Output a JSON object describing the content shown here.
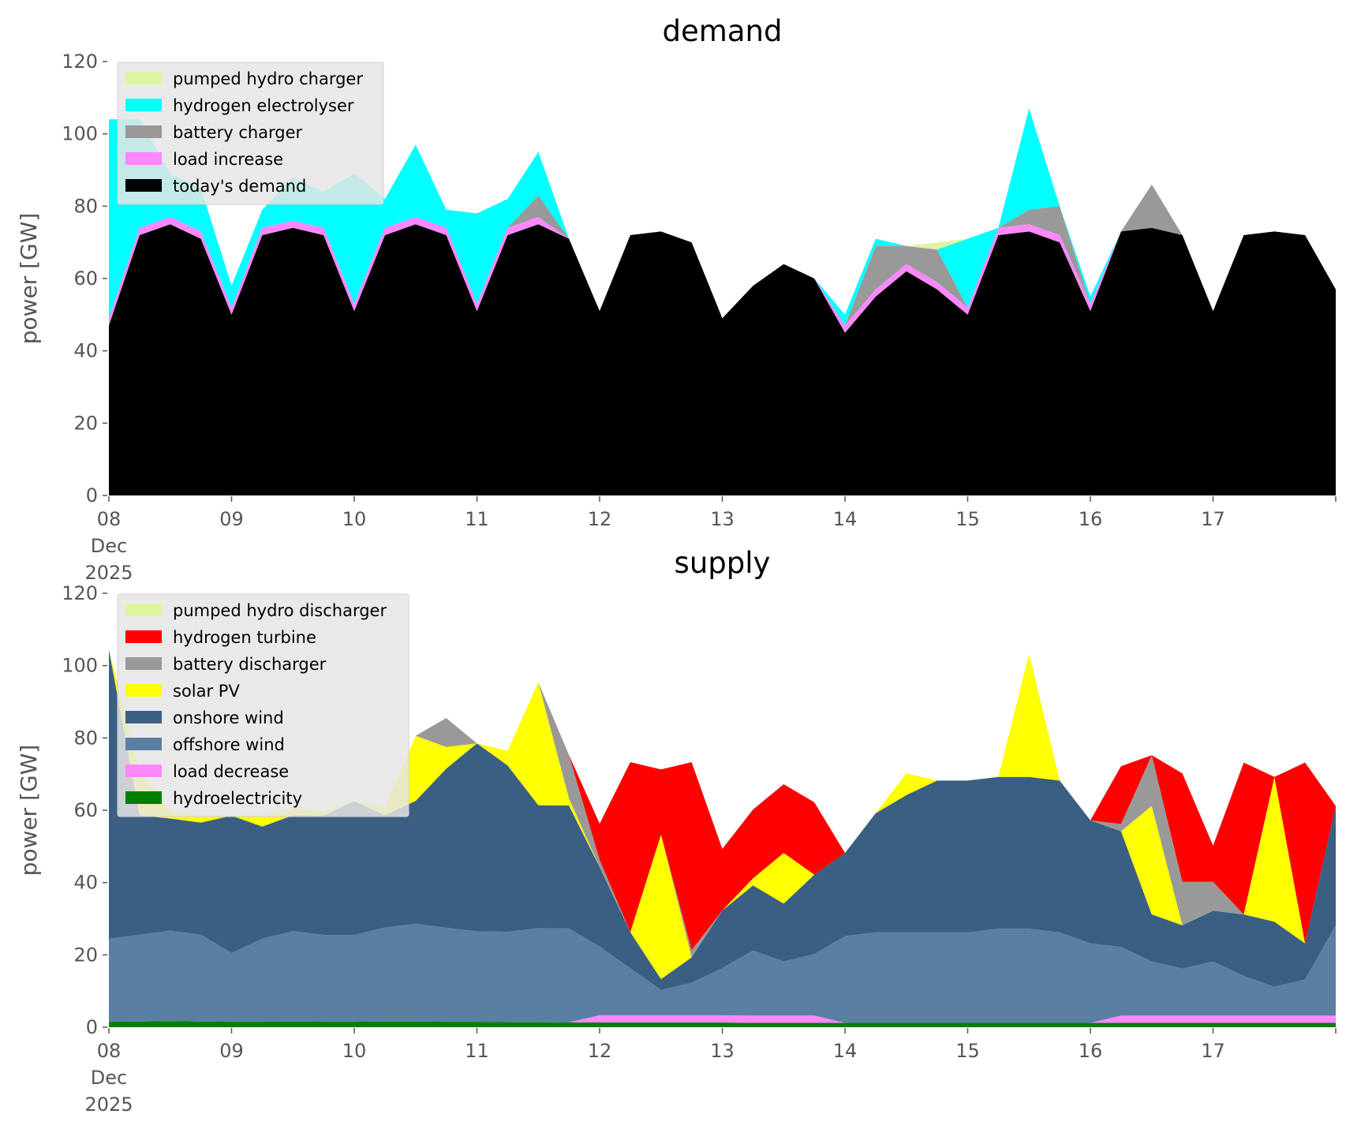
{
  "chart_data": [
    {
      "type": "area",
      "stacked": true,
      "title": "demand",
      "xlabel": "",
      "ylabel": "power [GW]",
      "ylim": [
        0,
        120
      ],
      "y_ticks": [
        "0",
        "20",
        "40",
        "60",
        "80",
        "100",
        "120"
      ],
      "x_ticks": [
        "08",
        "09",
        "10",
        "11",
        "12",
        "13",
        "14",
        "15",
        "16",
        "17"
      ],
      "x_tick_sublabel": [
        "Dec",
        "2025"
      ],
      "x_days": [
        0,
        1,
        2,
        3,
        4,
        5,
        6,
        7,
        8,
        9
      ],
      "xlim": [
        0,
        10
      ],
      "legend_position": "top-left",
      "x": [
        0,
        0.25,
        0.5,
        0.75,
        1,
        1.25,
        1.5,
        1.75,
        2,
        2.25,
        2.5,
        2.75,
        3,
        3.25,
        3.5,
        3.75,
        4,
        4.25,
        4.5,
        4.75,
        5,
        5.25,
        5.5,
        5.75,
        6,
        6.25,
        6.5,
        6.75,
        7,
        7.25,
        7.5,
        7.75,
        8,
        8.25,
        8.5,
        8.75,
        9,
        9.25,
        9.5,
        9.75,
        10
      ],
      "series": [
        {
          "name": "today's demand",
          "color": "#000000",
          "values": [
            47,
            72,
            75,
            71,
            50,
            72,
            74,
            72,
            51,
            72,
            75,
            72,
            51,
            72,
            75,
            71,
            51,
            72,
            73,
            70,
            49,
            58,
            64,
            60,
            45,
            55,
            62,
            57,
            50,
            72,
            73,
            70,
            51,
            73,
            74,
            72,
            51,
            72,
            73,
            72,
            57
          ]
        },
        {
          "name": "load increase",
          "color": "#ff88ff",
          "values": [
            2,
            2,
            2,
            2,
            2,
            2,
            2,
            2,
            2,
            2,
            2,
            2,
            2,
            2,
            2,
            0,
            0,
            0,
            0,
            0,
            0,
            0,
            0,
            0,
            2,
            2,
            2,
            2,
            2,
            2,
            2,
            2,
            2,
            0,
            0,
            0,
            0,
            0,
            0,
            0,
            0
          ]
        },
        {
          "name": "battery charger",
          "color": "#999999",
          "values": [
            0,
            0,
            0,
            0,
            0,
            0,
            0,
            0,
            0,
            0,
            0,
            0,
            0,
            0,
            6,
            0,
            0,
            0,
            0,
            0,
            0,
            0,
            0,
            0,
            0,
            12,
            5,
            9,
            0,
            0,
            4,
            8,
            0,
            0,
            12,
            0,
            0,
            0,
            0,
            0,
            0
          ]
        },
        {
          "name": "hydrogen electrolyser",
          "color": "#00ffff",
          "values": [
            55,
            30,
            12,
            12,
            6,
            5,
            12,
            10,
            36,
            8,
            20,
            5,
            25,
            8,
            12,
            0,
            0,
            0,
            0,
            0,
            0,
            0,
            0,
            0,
            3,
            2,
            0,
            0,
            19,
            0,
            28,
            0,
            2,
            0,
            0,
            0,
            0,
            0,
            0,
            0,
            0
          ]
        },
        {
          "name": "pumped hydro charger",
          "color": "#ddf5a0",
          "values": [
            0,
            0,
            0,
            0,
            0,
            0,
            0,
            0,
            0,
            0,
            0,
            0,
            0,
            0,
            0,
            0,
            0,
            0,
            0,
            0,
            0,
            0,
            0,
            0,
            0,
            0,
            0,
            2,
            0,
            0,
            0,
            0,
            0,
            0,
            0,
            0,
            0,
            0,
            0,
            0,
            0
          ]
        }
      ]
    },
    {
      "type": "area",
      "stacked": true,
      "title": "supply",
      "xlabel": "",
      "ylabel": "power [GW]",
      "ylim": [
        0,
        120
      ],
      "y_ticks": [
        "0",
        "20",
        "40",
        "60",
        "80",
        "100",
        "120"
      ],
      "x_ticks": [
        "08",
        "09",
        "10",
        "11",
        "12",
        "13",
        "14",
        "15",
        "16",
        "17"
      ],
      "x_tick_sublabel": [
        "Dec",
        "2025"
      ],
      "x_days": [
        0,
        1,
        2,
        3,
        4,
        5,
        6,
        7,
        8,
        9
      ],
      "xlim": [
        0,
        10
      ],
      "legend_position": "top-left",
      "x": [
        0,
        0.25,
        0.5,
        0.75,
        1,
        1.25,
        1.5,
        1.75,
        2,
        2.25,
        2.5,
        2.75,
        3,
        3.25,
        3.5,
        3.75,
        4,
        4.25,
        4.5,
        4.75,
        5,
        5.25,
        5.5,
        5.75,
        6,
        6.25,
        6.5,
        6.75,
        7,
        7.25,
        7.5,
        7.75,
        8,
        8.25,
        8.5,
        8.75,
        9,
        9.25,
        9.5,
        9.75,
        10
      ],
      "series": [
        {
          "name": "hydroelectricity",
          "color": "#008000",
          "values": [
            1.5,
            1.6,
            1.7,
            1.6,
            1.5,
            1.5,
            1.6,
            1.5,
            1.5,
            1.6,
            1.6,
            1.5,
            1.5,
            1.4,
            1.4,
            1.3,
            1.3,
            1.3,
            1.3,
            1.3,
            1.3,
            1.2,
            1.2,
            1.2,
            1.2,
            1.2,
            1.2,
            1.2,
            1.2,
            1.2,
            1.2,
            1.2,
            1.2,
            1.2,
            1.2,
            1.2,
            1.2,
            1.2,
            1.2,
            1.2,
            1.2
          ]
        },
        {
          "name": "load decrease",
          "color": "#ff88ff",
          "values": [
            0,
            0,
            0,
            0,
            0,
            0,
            0,
            0,
            0,
            0,
            0,
            0,
            0,
            0,
            0,
            0,
            2,
            2,
            2,
            2,
            2,
            2,
            2,
            2,
            0,
            0,
            0,
            0,
            0,
            0,
            0,
            0,
            0,
            2,
            2,
            2,
            2,
            2,
            2,
            2,
            2
          ]
        },
        {
          "name": "offshore wind",
          "color": "#5b7fa3",
          "values": [
            23,
            24,
            25,
            24,
            19,
            23,
            25,
            24,
            24,
            26,
            27,
            26,
            25,
            25,
            26,
            26,
            19,
            13,
            7,
            9,
            13,
            18,
            15,
            17,
            24,
            25,
            25,
            25,
            25,
            26,
            26,
            25,
            22,
            19,
            15,
            13,
            15,
            11,
            8,
            10,
            25
          ]
        },
        {
          "name": "onshore wind",
          "color": "#3a5f82",
          "values": [
            80,
            33,
            31,
            31,
            38,
            31,
            32,
            33,
            37,
            31,
            34,
            44,
            52,
            46,
            34,
            34,
            22,
            10,
            3,
            7,
            16,
            18,
            16,
            22,
            23,
            33,
            38,
            42,
            42,
            42,
            42,
            42,
            34,
            32,
            13,
            12,
            14,
            17,
            18,
            10,
            33
          ]
        },
        {
          "name": "solar PV",
          "color": "#ffff00",
          "values": [
            0,
            12,
            2,
            2,
            0,
            3,
            2,
            1,
            0,
            2,
            18,
            6,
            0,
            4,
            34,
            2,
            0,
            0,
            40,
            0,
            0,
            2,
            14,
            0,
            0,
            0,
            6,
            0,
            0,
            0,
            34,
            0,
            0,
            0,
            30,
            0,
            0,
            0,
            40,
            0,
            0
          ]
        },
        {
          "name": "battery discharger",
          "color": "#999999",
          "values": [
            0,
            0,
            0,
            0,
            0,
            0,
            0,
            0,
            0,
            0,
            0,
            8,
            0,
            0,
            0,
            12,
            2,
            0,
            0,
            2,
            0,
            0,
            0,
            0,
            0,
            0,
            0,
            0,
            0,
            0,
            0,
            0,
            0,
            2,
            14,
            12,
            8,
            0,
            0,
            0,
            0
          ]
        },
        {
          "name": "hydrogen turbine",
          "color": "#ff0000",
          "values": [
            0,
            0,
            0,
            0,
            0,
            0,
            0,
            0,
            0,
            0,
            0,
            0,
            0,
            0,
            0,
            0,
            10,
            47,
            18,
            52,
            17,
            19,
            19,
            20,
            0,
            0,
            0,
            0,
            0,
            0,
            0,
            0,
            0,
            16,
            0,
            30,
            10,
            42,
            0,
            50,
            0
          ]
        },
        {
          "name": "pumped hydro discharger",
          "color": "#ddf5a0",
          "values": [
            0,
            0,
            0,
            0,
            0,
            0,
            0,
            0,
            0,
            0,
            0,
            0,
            0,
            0,
            0,
            0,
            0,
            0,
            0,
            0,
            0,
            0,
            0,
            0,
            0,
            0,
            0,
            0,
            0,
            0,
            0,
            0,
            0,
            0,
            0,
            0,
            0,
            0,
            0,
            0,
            0
          ]
        }
      ]
    }
  ],
  "colors": {
    "legend_background": "#e5e5e5",
    "tick_text": "#555555"
  }
}
